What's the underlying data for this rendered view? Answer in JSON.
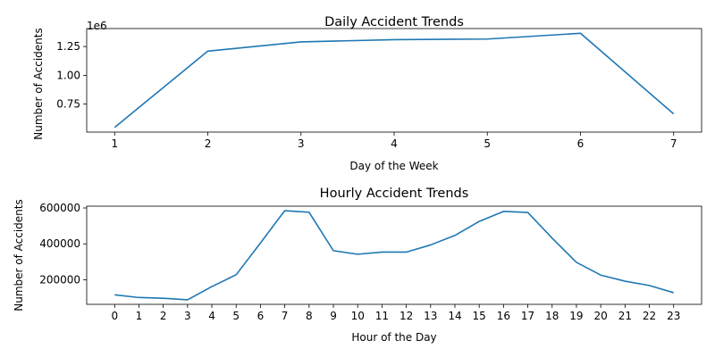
{
  "figure": {
    "background": "#ffffff",
    "line_color": "#1f77b4"
  },
  "chart_data": [
    {
      "type": "line",
      "title": "Daily Accident Trends",
      "xlabel": "Day of the Week",
      "ylabel": "Number of Accidents",
      "y_offset_text": "1e6",
      "y_scale_factor": 1000000,
      "x": [
        1,
        2,
        3,
        4,
        5,
        6,
        7
      ],
      "series": [
        {
          "values": [
            548000,
            1210000,
            1290000,
            1310000,
            1315000,
            1365000,
            665000
          ]
        }
      ],
      "xticks": [
        1,
        2,
        3,
        4,
        5,
        6,
        7
      ],
      "xtick_labels": [
        "1",
        "2",
        "3",
        "4",
        "5",
        "6",
        "7"
      ],
      "yticks": [
        750000,
        1000000,
        1250000
      ],
      "ytick_labels": [
        "0.75",
        "1.00",
        "1.25"
      ],
      "xlim": [
        0.7,
        7.3
      ],
      "ylim": [
        507000,
        1406000
      ],
      "grid": false,
      "legend": false
    },
    {
      "type": "line",
      "title": "Hourly Accident Trends",
      "xlabel": "Hour of the Day",
      "ylabel": "Number of Accidents",
      "x": [
        0,
        1,
        2,
        3,
        4,
        5,
        6,
        7,
        8,
        9,
        10,
        11,
        12,
        13,
        14,
        15,
        16,
        17,
        18,
        19,
        20,
        21,
        22,
        23
      ],
      "series": [
        {
          "values": [
            116000,
            101000,
            97000,
            88000,
            162000,
            228000,
            405000,
            585000,
            576000,
            362000,
            342000,
            354000,
            354000,
            394000,
            447000,
            525000,
            581000,
            575000,
            432000,
            297000,
            226000,
            192000,
            168000,
            128000
          ]
        }
      ],
      "xticks": [
        0,
        1,
        2,
        3,
        4,
        5,
        6,
        7,
        8,
        9,
        10,
        11,
        12,
        13,
        14,
        15,
        16,
        17,
        18,
        19,
        20,
        21,
        22,
        23
      ],
      "xtick_labels": [
        "0",
        "1",
        "2",
        "3",
        "4",
        "5",
        "6",
        "7",
        "8",
        "9",
        "10",
        "11",
        "12",
        "13",
        "14",
        "15",
        "16",
        "17",
        "18",
        "19",
        "20",
        "21",
        "22",
        "23"
      ],
      "yticks": [
        200000,
        400000,
        600000
      ],
      "ytick_labels": [
        "200000",
        "400000",
        "600000"
      ],
      "xlim": [
        -1.15,
        24.15
      ],
      "ylim": [
        63000,
        610000
      ],
      "grid": false,
      "legend": false
    }
  ]
}
